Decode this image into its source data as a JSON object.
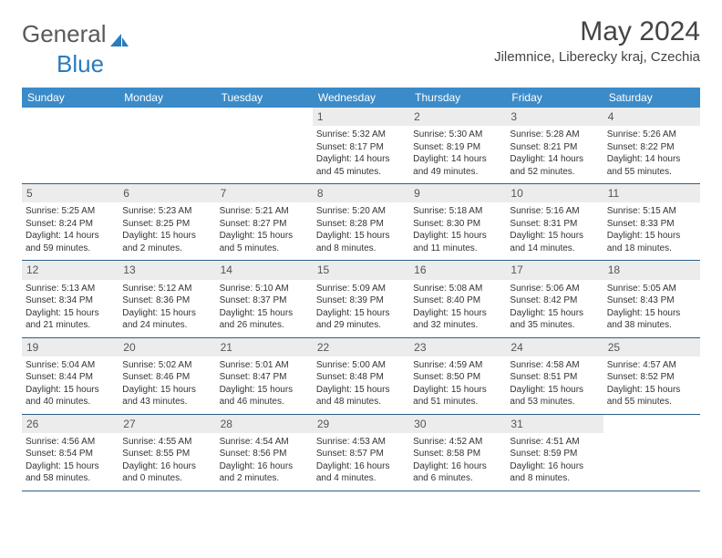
{
  "logo": {
    "text1": "General",
    "text2": "Blue"
  },
  "title": "May 2024",
  "location": "Jilemnice, Liberecky kraj, Czechia",
  "colors": {
    "header_bg": "#3b8bc9",
    "header_text": "#ffffff",
    "daynum_bg": "#ececec",
    "week_border": "#2f5f8a",
    "logo_gray": "#5a5a5a",
    "logo_blue": "#2b7bbd"
  },
  "dow": [
    "Sunday",
    "Monday",
    "Tuesday",
    "Wednesday",
    "Thursday",
    "Friday",
    "Saturday"
  ],
  "weeks": [
    [
      {
        "n": "",
        "empty": true
      },
      {
        "n": "",
        "empty": true
      },
      {
        "n": "",
        "empty": true
      },
      {
        "n": "1",
        "sr": "Sunrise: 5:32 AM",
        "ss": "Sunset: 8:17 PM",
        "dl": "Daylight: 14 hours and 45 minutes."
      },
      {
        "n": "2",
        "sr": "Sunrise: 5:30 AM",
        "ss": "Sunset: 8:19 PM",
        "dl": "Daylight: 14 hours and 49 minutes."
      },
      {
        "n": "3",
        "sr": "Sunrise: 5:28 AM",
        "ss": "Sunset: 8:21 PM",
        "dl": "Daylight: 14 hours and 52 minutes."
      },
      {
        "n": "4",
        "sr": "Sunrise: 5:26 AM",
        "ss": "Sunset: 8:22 PM",
        "dl": "Daylight: 14 hours and 55 minutes."
      }
    ],
    [
      {
        "n": "5",
        "sr": "Sunrise: 5:25 AM",
        "ss": "Sunset: 8:24 PM",
        "dl": "Daylight: 14 hours and 59 minutes."
      },
      {
        "n": "6",
        "sr": "Sunrise: 5:23 AM",
        "ss": "Sunset: 8:25 PM",
        "dl": "Daylight: 15 hours and 2 minutes."
      },
      {
        "n": "7",
        "sr": "Sunrise: 5:21 AM",
        "ss": "Sunset: 8:27 PM",
        "dl": "Daylight: 15 hours and 5 minutes."
      },
      {
        "n": "8",
        "sr": "Sunrise: 5:20 AM",
        "ss": "Sunset: 8:28 PM",
        "dl": "Daylight: 15 hours and 8 minutes."
      },
      {
        "n": "9",
        "sr": "Sunrise: 5:18 AM",
        "ss": "Sunset: 8:30 PM",
        "dl": "Daylight: 15 hours and 11 minutes."
      },
      {
        "n": "10",
        "sr": "Sunrise: 5:16 AM",
        "ss": "Sunset: 8:31 PM",
        "dl": "Daylight: 15 hours and 14 minutes."
      },
      {
        "n": "11",
        "sr": "Sunrise: 5:15 AM",
        "ss": "Sunset: 8:33 PM",
        "dl": "Daylight: 15 hours and 18 minutes."
      }
    ],
    [
      {
        "n": "12",
        "sr": "Sunrise: 5:13 AM",
        "ss": "Sunset: 8:34 PM",
        "dl": "Daylight: 15 hours and 21 minutes."
      },
      {
        "n": "13",
        "sr": "Sunrise: 5:12 AM",
        "ss": "Sunset: 8:36 PM",
        "dl": "Daylight: 15 hours and 24 minutes."
      },
      {
        "n": "14",
        "sr": "Sunrise: 5:10 AM",
        "ss": "Sunset: 8:37 PM",
        "dl": "Daylight: 15 hours and 26 minutes."
      },
      {
        "n": "15",
        "sr": "Sunrise: 5:09 AM",
        "ss": "Sunset: 8:39 PM",
        "dl": "Daylight: 15 hours and 29 minutes."
      },
      {
        "n": "16",
        "sr": "Sunrise: 5:08 AM",
        "ss": "Sunset: 8:40 PM",
        "dl": "Daylight: 15 hours and 32 minutes."
      },
      {
        "n": "17",
        "sr": "Sunrise: 5:06 AM",
        "ss": "Sunset: 8:42 PM",
        "dl": "Daylight: 15 hours and 35 minutes."
      },
      {
        "n": "18",
        "sr": "Sunrise: 5:05 AM",
        "ss": "Sunset: 8:43 PM",
        "dl": "Daylight: 15 hours and 38 minutes."
      }
    ],
    [
      {
        "n": "19",
        "sr": "Sunrise: 5:04 AM",
        "ss": "Sunset: 8:44 PM",
        "dl": "Daylight: 15 hours and 40 minutes."
      },
      {
        "n": "20",
        "sr": "Sunrise: 5:02 AM",
        "ss": "Sunset: 8:46 PM",
        "dl": "Daylight: 15 hours and 43 minutes."
      },
      {
        "n": "21",
        "sr": "Sunrise: 5:01 AM",
        "ss": "Sunset: 8:47 PM",
        "dl": "Daylight: 15 hours and 46 minutes."
      },
      {
        "n": "22",
        "sr": "Sunrise: 5:00 AM",
        "ss": "Sunset: 8:48 PM",
        "dl": "Daylight: 15 hours and 48 minutes."
      },
      {
        "n": "23",
        "sr": "Sunrise: 4:59 AM",
        "ss": "Sunset: 8:50 PM",
        "dl": "Daylight: 15 hours and 51 minutes."
      },
      {
        "n": "24",
        "sr": "Sunrise: 4:58 AM",
        "ss": "Sunset: 8:51 PM",
        "dl": "Daylight: 15 hours and 53 minutes."
      },
      {
        "n": "25",
        "sr": "Sunrise: 4:57 AM",
        "ss": "Sunset: 8:52 PM",
        "dl": "Daylight: 15 hours and 55 minutes."
      }
    ],
    [
      {
        "n": "26",
        "sr": "Sunrise: 4:56 AM",
        "ss": "Sunset: 8:54 PM",
        "dl": "Daylight: 15 hours and 58 minutes."
      },
      {
        "n": "27",
        "sr": "Sunrise: 4:55 AM",
        "ss": "Sunset: 8:55 PM",
        "dl": "Daylight: 16 hours and 0 minutes."
      },
      {
        "n": "28",
        "sr": "Sunrise: 4:54 AM",
        "ss": "Sunset: 8:56 PM",
        "dl": "Daylight: 16 hours and 2 minutes."
      },
      {
        "n": "29",
        "sr": "Sunrise: 4:53 AM",
        "ss": "Sunset: 8:57 PM",
        "dl": "Daylight: 16 hours and 4 minutes."
      },
      {
        "n": "30",
        "sr": "Sunrise: 4:52 AM",
        "ss": "Sunset: 8:58 PM",
        "dl": "Daylight: 16 hours and 6 minutes."
      },
      {
        "n": "31",
        "sr": "Sunrise: 4:51 AM",
        "ss": "Sunset: 8:59 PM",
        "dl": "Daylight: 16 hours and 8 minutes."
      },
      {
        "n": "",
        "empty": true
      }
    ]
  ]
}
